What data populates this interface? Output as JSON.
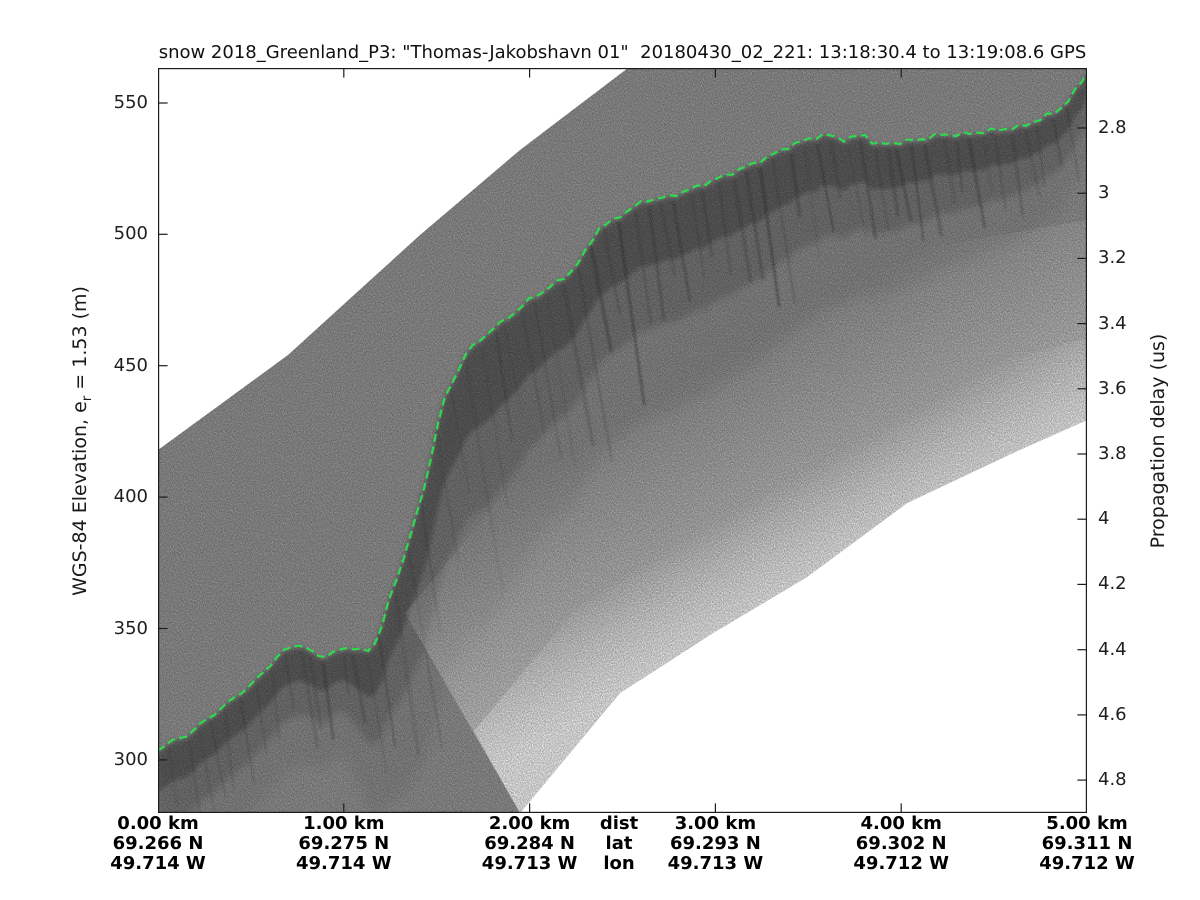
{
  "figure": {
    "title": "snow 2018_Greenland_P3: \"Thomas-Jakobshavn 01\"  20180430_02_221: 13:18:30.4 to 13:19:08.6 GPS"
  },
  "axes": {
    "left": {
      "label_main": "WGS-84 Elevation, e",
      "label_sub": "r",
      "label_tail": " = 1.53 (m)",
      "ticks": [
        "550",
        "500",
        "450",
        "400",
        "350",
        "300"
      ],
      "tick_values_m": [
        550,
        500,
        450,
        400,
        350,
        300
      ]
    },
    "right": {
      "label": "Propagation delay (us)",
      "ticks": [
        "2.8",
        "3",
        "3.2",
        "3.4",
        "3.6",
        "3.8",
        "4",
        "4.2",
        "4.4",
        "4.6",
        "4.8"
      ],
      "tick_values_us": [
        2.8,
        3,
        3.2,
        3.4,
        3.6,
        3.8,
        4,
        4.2,
        4.4,
        4.6,
        4.8
      ]
    },
    "bottom": {
      "row_keys": [
        "dist",
        "lat",
        "lon"
      ],
      "columns": [
        {
          "dist": "0.00 km",
          "lat": "69.266 N",
          "lon": "49.714 W"
        },
        {
          "dist": "1.00 km",
          "lat": "69.275 N",
          "lon": "49.714 W"
        },
        {
          "dist": "2.00 km",
          "lat": "69.284 N",
          "lon": "49.713 W"
        },
        {
          "dist": "3.00 km",
          "lat": "69.293 N",
          "lon": "49.713 W"
        },
        {
          "dist": "4.00 km",
          "lat": "69.302 N",
          "lon": "49.712 W"
        },
        {
          "dist": "5.00 km",
          "lat": "69.311 N",
          "lon": "49.712 W"
        }
      ]
    }
  },
  "colors": {
    "axis": "#1c1c1c",
    "text": "#1f1f1f",
    "surface_line": "#2edb4e",
    "band_gray": "#969696",
    "background": "#ffffff"
  },
  "chart_data": {
    "type": "heatmap",
    "title": "snow 2018_Greenland_P3: \"Thomas-Jakobshavn 01\"  20180430_02_221: 13:18:30.4 to 13:19:08.6 GPS",
    "colormap": "grayscale (dark = strong scatter, white = no data)",
    "xlabel": "dist (km) with lat/lon annotations",
    "ylabel_left": "WGS-84 Elevation, e_r = 1.53 (m)",
    "ylabel_right": "Propagation delay (us)",
    "xlim_km": [
      0,
      5
    ],
    "x_ticks_km": [
      0,
      1,
      2,
      3,
      4,
      5
    ],
    "ylim_left_m": [
      279.8,
      563.3
    ],
    "ylim_right_us": [
      2.616,
      4.901
    ],
    "grid": false,
    "legend": null,
    "surface_profile": {
      "name": "green dashed surface pick",
      "dist_km": [
        0.0,
        0.075,
        0.172,
        0.253,
        0.35,
        0.431,
        0.495,
        0.56,
        0.614,
        0.684,
        0.753,
        0.807,
        0.883,
        0.953,
        1.023,
        1.087,
        1.146,
        1.2,
        1.249,
        1.297,
        1.335,
        1.372,
        1.405,
        1.442,
        1.469,
        1.502,
        1.534,
        1.572,
        1.609,
        1.647,
        1.69,
        1.738,
        1.798,
        1.862,
        1.932,
        1.997,
        2.067,
        2.131,
        2.196,
        2.261,
        2.314,
        2.368,
        2.443,
        2.529,
        2.621,
        2.734,
        2.863,
        3.003,
        3.143,
        3.272,
        3.38,
        3.488,
        3.595,
        3.698,
        3.8,
        3.864,
        3.983,
        4.101,
        4.214,
        4.327,
        4.44,
        4.548,
        4.65,
        4.752,
        4.844,
        4.914,
        4.968,
        5.0
      ],
      "elevation_m": [
        304,
        307,
        310,
        315,
        320,
        325,
        328,
        333,
        337,
        342,
        344,
        342,
        339,
        341,
        343,
        342,
        341,
        350,
        362,
        371,
        380,
        389,
        396,
        406,
        415,
        427,
        436,
        442,
        447,
        454,
        457,
        460,
        464,
        467,
        471,
        475,
        478,
        481,
        484,
        489,
        495,
        502,
        505,
        509,
        513,
        514,
        517,
        521,
        525,
        529,
        533,
        536,
        538,
        536,
        538,
        534,
        535,
        536,
        538,
        538,
        539,
        540,
        541,
        544,
        547,
        552,
        558,
        562
      ]
    },
    "swath": {
      "top_edge_frac": [
        [
          0,
          0.513
        ],
        [
          0.14,
          0.385
        ],
        [
          0.282,
          0.224
        ],
        [
          0.39,
          0.11
        ],
        [
          0.506,
          0
        ]
      ],
      "bottom_edge_frac": [
        [
          0.39,
          1
        ],
        [
          0.497,
          0.839
        ],
        [
          0.597,
          0.758
        ],
        [
          0.699,
          0.683
        ],
        [
          0.806,
          0.584
        ],
        [
          0.92,
          0.517
        ],
        [
          1,
          0.472
        ]
      ]
    },
    "scatter_depth_profile": {
      "dist_km": [
        0,
        0.7,
        1.0,
        1.2,
        1.45,
        1.8,
        2.1,
        2.6,
        3.2,
        3.8,
        4.3,
        4.8,
        5.0
      ],
      "depth_m": [
        30,
        26,
        22,
        40,
        62,
        64,
        52,
        48,
        44,
        34,
        28,
        22,
        18
      ]
    }
  }
}
